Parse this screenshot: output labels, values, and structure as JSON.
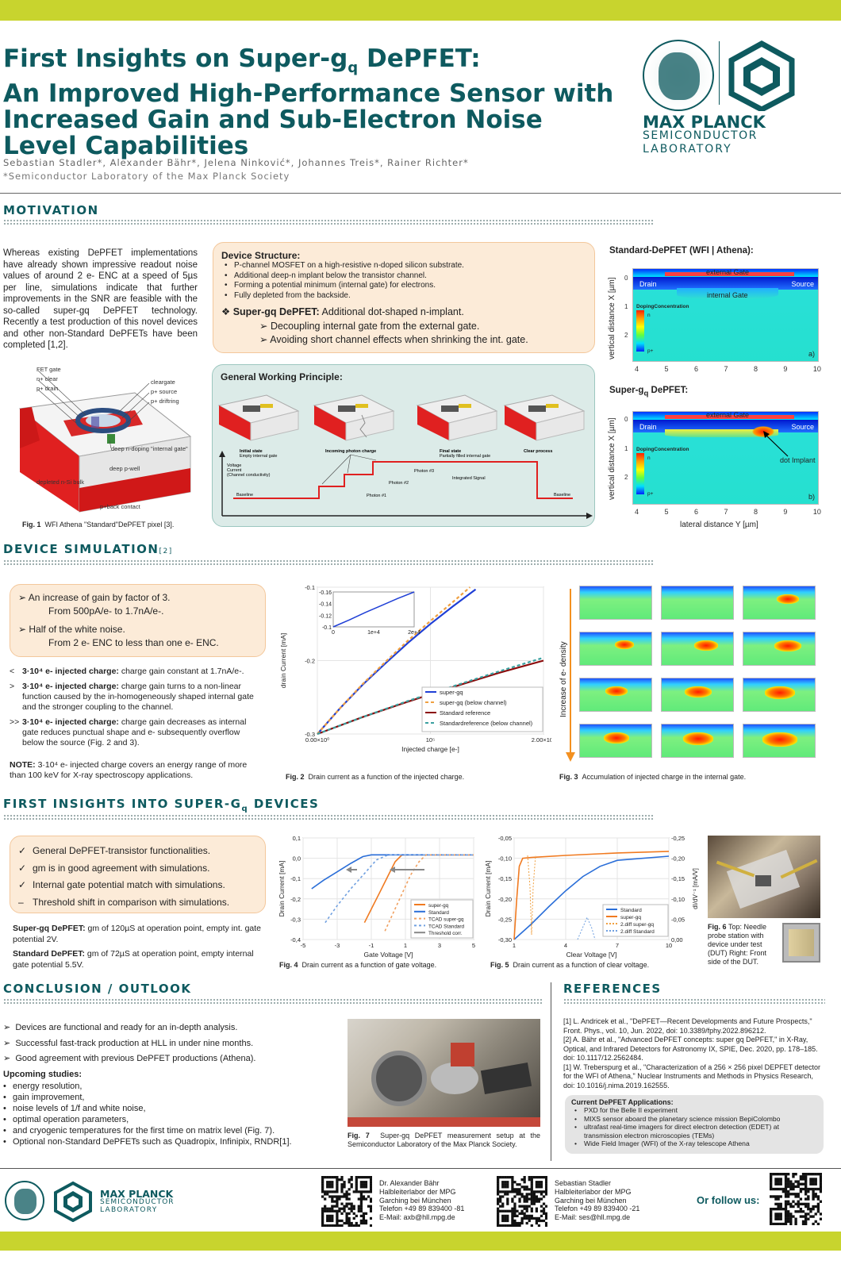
{
  "header": {
    "title_lines": [
      "First Insights on Super-g",
      "An Improved High-Performance Sensor with",
      "Increased Gain and Sub-Electron Noise",
      "Level Capabilities"
    ],
    "title_sub": "q",
    "title_tail": " DePFET:",
    "authors": "Sebastian Stadler*, Alexander Bähr*, Jelena Ninković*, Johannes Treis*, Rainer Richter*",
    "affiliation": "*Semiconductor Laboratory of the Max Planck Society",
    "logo_line1": "MAX PLANCK",
    "logo_line2": "SEMICONDUCTOR",
    "logo_line3": "LABORATORY"
  },
  "motivation": {
    "heading": "MOTIVATION",
    "intro": "Whereas existing DePFET implementations have already shown impressive readout noise values of around 2 e- ENC at a speed of 5µs per line, simulations indicate that further improvements in the SNR are feasible with the so-called super-gq DePFET technology. Recently a test production of this novel devices and other non-Standard DePFETs have been completed [1,2].",
    "device_structure_title": "Device Structure:",
    "device_structure": [
      "P-channel MOSFET on a high-resistive n-doped silicon substrate.",
      "Additional deep-n implant below the transistor channel.",
      "Forming a potential minimum (internal gate) for electrons.",
      "Fully depleted from the backside."
    ],
    "superg_label": "Super-gq DePFET:",
    "superg_text": " Additional dot-shaped n-implant.",
    "superg_points": [
      "Decoupling internal gate from the external gate.",
      "Avoiding short channel effects when shrinking the int. gate."
    ],
    "fig1_labels": [
      "FET gate",
      "n+ clear",
      "p+ drain",
      "cleargate",
      "p+ source",
      "p+ driftring",
      "deep n-doping \"internal gate\"",
      "deep p-well",
      "depleted n-Si bulk",
      "p+back contact"
    ],
    "fig1_caption_num": "Fig. 1",
    "fig1_caption": "WFI Athena \"Standard\"DePFET pixel [3].",
    "working_title": "General Working Principle:",
    "working_labels": [
      "Initial state",
      "Empty internal gate",
      "Incoming photon charge",
      "Final state",
      "Partially filled internal gate",
      "Clear process",
      "Voltage",
      "Current",
      "(Channel conductivity)",
      "Baseline",
      "Photon #1",
      "Photon #2",
      "Photon #3",
      "Integrated Signal",
      "Baseline"
    ],
    "std_title": "Standard-DePFET (WFI | Athena):",
    "sg_title": "Super-gq DePFET:",
    "sim_labels": {
      "external_gate": "external Gate",
      "drain": "Drain",
      "source": "Source",
      "internal_gate": "internal Gate",
      "doping": "DopingConcentration",
      "n": "n",
      "p": "p+",
      "a": "a)",
      "b": "b)",
      "dot": "dot Implant",
      "ylabel": "vertical distance X [µm]",
      "xlabel": "lateral distance Y [µm]"
    },
    "sim_xticks": [
      "4",
      "5",
      "6",
      "7",
      "8",
      "9",
      "10"
    ],
    "sim_yticks": [
      "0",
      "1",
      "2"
    ]
  },
  "device_sim": {
    "heading": "DEVICE SIMULATION",
    "ref": "[2]",
    "box": [
      "An increase of gain by factor of 3.",
      "From 500pA/e- to 1.7nA/e-.",
      "Half of the white noise.",
      "From 2 e- ENC to less than one e- ENC."
    ],
    "points": [
      {
        "sym": "<",
        "bold": "3·10⁴ e- injected charge:",
        "text": " charge gain constant at 1.7nA/e-."
      },
      {
        "sym": ">",
        "bold": "3·10⁴ e- injected charge:",
        "text": " charge gain turns to a non-linear function caused by the in-homogeneously shaped internal gate and the stronger coupling to the channel."
      },
      {
        "sym": ">>",
        "bold": "3·10⁴ e- injected charge:",
        "text": " charge gain decreases as internal gate reduces punctual shape and e- subsequently overflow below the source (Fig. 2 and 3)."
      }
    ],
    "note_bold": "NOTE:",
    "note": " 3·10⁴ e- injected charge covers an energy range of more than 100 keV for X-ray spectroscopy applications.",
    "fig2_num": "Fig. 2",
    "fig2_caption": "Drain current as a function of the injected charge.",
    "fig3_num": "Fig. 3",
    "fig3_caption": "Accumulation of injected charge in the internal gate.",
    "fig3_ylabel": "Increase of e- density"
  },
  "insights": {
    "heading": "FIRST INSIGHTS INTO SUPER-G",
    "heading_sub": "q",
    "heading_tail": " DEVICES",
    "box": [
      {
        "sym": "✓",
        "text": "General DePFET-transistor functionalities."
      },
      {
        "sym": "✓",
        "text": "gm is in good agreement with simulations."
      },
      {
        "sym": "✓",
        "text": "Internal gate potential match with simulations."
      },
      {
        "sym": "–",
        "text": "Threshold shift in comparison with simulations."
      }
    ],
    "sg_bold": "Super-gq DePFET:",
    "sg_text": " gm of 120µS at operation point, empty int. gate potential 2V.",
    "std_bold": "Standard DePFET:",
    "std_text": " gm of 72µS at operation point, empty internal gate potential 5.5V.",
    "fig4_num": "Fig. 4",
    "fig4_caption": "Drain current as a function of gate voltage.",
    "fig5_num": "Fig. 5",
    "fig5_caption": "Drain current as a function of clear voltage.",
    "fig6_num": "Fig. 6",
    "fig6_caption": "Top: Needle probe station with device under test (DUT) Right: Front side of the DUT."
  },
  "conclusion": {
    "heading": "CONCLUSION / OUTLOOK",
    "points": [
      "Devices are functional and ready for an in-depth analysis.",
      "Successful fast-track production at HLL in under nine months.",
      "Good agreement with previous DePFET productions (Athena)."
    ],
    "upcoming_title": "Upcoming studies:",
    "upcoming": [
      "energy resolution,",
      "gain improvement,",
      "noise levels of 1/f and white noise,",
      "optimal operation parameters,",
      "and cryogenic temperatures for the first time on matrix level (Fig. 7).",
      "Optional non-Standard DePFETs such as Quadropix, Infinipix, RNDR[1]."
    ],
    "fig7_num": "Fig. 7",
    "fig7_caption": "Super-gq DePFET measurement setup at the Semiconductor Laboratory of the Max Planck Society."
  },
  "references": {
    "heading": "REFERENCES",
    "items": [
      "[1] L. Andricek et al., \"DePFET—Recent Developments and Future Prospects,\" Front. Phys., vol. 10, Jun. 2022, doi: 10.3389/fphy.2022.896212.",
      "[2] A. Bähr et al., \"Advanced DePFET concepts: super gq DePFET,\" in X-Ray, Optical, and Infrared Detectors for Astronomy IX, SPIE, Dec. 2020, pp. 178–185. doi: 10.1117/12.2562484.",
      "[1] W. Treberspurg et al., \"Characterization of a 256 × 256 pixel DEPFET detector for the WFI of Athena,\" Nuclear Instruments and Methods in Physics Research, doi: 10.1016/j.nima.2019.162555."
    ],
    "apps_title": "Current DePFET Applications:",
    "apps": [
      "PXD for the Belle II experiment",
      "MIXS sensor aboard the planetary science mission BepiColombo",
      "ultrafast real-time imagers for direct electron detection (EDET) at transmission electron microscopies (TEMs)",
      "Wide Field Imager (WFI) of the X-ray telescope Athena"
    ]
  },
  "footer": {
    "logo_line1": "MAX PLANCK",
    "logo_line2": "SEMICONDUCTOR",
    "logo_line3": "LABORATORY",
    "contact1": [
      "Dr. Alexander Bähr",
      "Halbleiterlabor der MPG",
      "Garching bei München",
      "Telefon +49 89 839400 -81",
      "E-Mail: axb@hll.mpg.de"
    ],
    "contact2": [
      "Sebastian Stadler",
      "Halbleiterlabor der MPG",
      "Garching bei München",
      "Telefon +49 89 839400 -21",
      "E-Mail: ses@hll.mpg.de"
    ],
    "follow": "Or follow us:"
  },
  "chart_data": [
    {
      "type": "line",
      "title": "",
      "xlabel": "Injected charge [e-]",
      "ylabel": "drain Current [mA]",
      "xlim": [
        0,
        200000
      ],
      "ylim": [
        -0.1,
        -0.3
      ],
      "xticks": [
        "0.00×10⁰",
        "10⁵",
        "2.00×10⁵"
      ],
      "yticks": [
        "-0.3",
        "-0.2",
        "-0.1"
      ],
      "series": [
        {
          "name": "super-gq",
          "color": "#1f3fd6",
          "dash": "",
          "x": [
            0,
            20000,
            40000,
            60000,
            80000,
            100000,
            120000,
            140000
          ],
          "y": [
            -0.1,
            -0.135,
            -0.167,
            -0.196,
            -0.224,
            -0.25,
            -0.274,
            -0.297
          ]
        },
        {
          "name": "super-gq (below channel)",
          "color": "#f0a040",
          "dash": "4,3",
          "x": [
            0,
            20000,
            40000,
            60000,
            80000,
            100000,
            120000,
            135000
          ],
          "y": [
            -0.1,
            -0.135,
            -0.168,
            -0.198,
            -0.227,
            -0.254,
            -0.28,
            -0.3
          ]
        },
        {
          "name": "Standard reference",
          "color": "#8b0a0a",
          "dash": "",
          "x": [
            0,
            40000,
            80000,
            120000,
            160000,
            200000
          ],
          "y": [
            -0.1,
            -0.123,
            -0.144,
            -0.164,
            -0.183,
            -0.2
          ]
        },
        {
          "name": "Standardreference (below channel)",
          "color": "#3aa0a0",
          "dash": "4,3",
          "x": [
            0,
            40000,
            80000,
            120000,
            160000,
            200000
          ],
          "y": [
            -0.1,
            -0.123,
            -0.145,
            -0.165,
            -0.185,
            -0.204
          ]
        }
      ],
      "inset": {
        "xticks": [
          "0",
          "1e+4",
          "2e+4"
        ],
        "yticks": [
          "-0.16",
          "-0.14",
          "-0.12",
          "-0.1"
        ],
        "x": [
          0,
          5000,
          10000,
          15000,
          20000,
          25000
        ],
        "y": [
          -0.1,
          -0.112,
          -0.125,
          -0.137,
          -0.149,
          -0.16
        ]
      }
    },
    {
      "type": "line",
      "title": "",
      "xlabel": "Gate Voltage [V]",
      "ylabel": "Drain Current [mA]",
      "xlim": [
        -5,
        5
      ],
      "ylim": [
        -0.5,
        0.1
      ],
      "xticks": [
        "-5",
        "-3",
        "-1",
        "1",
        "3",
        "5"
      ],
      "yticks": [
        "0,1",
        "0,0",
        "-0,1",
        "-0,2",
        "-0,3",
        "-0,4"
      ],
      "series": [
        {
          "name": "super-gq",
          "color": "#f07a20",
          "dash": "",
          "x": [
            -1.4,
            -1.0,
            -0.5,
            0.0,
            0.4,
            0.8,
            5.0
          ],
          "y": [
            -0.4,
            -0.32,
            -0.22,
            -0.12,
            -0.04,
            0.0,
            0.0
          ]
        },
        {
          "name": "Standard",
          "color": "#2a6ed8",
          "dash": "",
          "x": [
            -4.5,
            -3.8,
            -3.0,
            -2.2,
            -1.5,
            -1.0,
            5.0
          ],
          "y": [
            -0.2,
            -0.15,
            -0.1,
            -0.05,
            -0.01,
            0.0,
            0.0
          ]
        },
        {
          "name": "TCAD super-gq",
          "color": "#f0a060",
          "dash": "3,3",
          "x": [
            -0.2,
            0.3,
            0.8,
            1.3,
            1.8,
            2.2,
            5.0
          ],
          "y": [
            -0.45,
            -0.34,
            -0.23,
            -0.12,
            -0.04,
            0.0,
            0.0
          ]
        },
        {
          "name": "TCAD Standard",
          "color": "#70a0e0",
          "dash": "3,3",
          "x": [
            -3.7,
            -3.0,
            -2.2,
            -1.4,
            -0.7,
            0.0,
            5.0
          ],
          "y": [
            -0.4,
            -0.3,
            -0.2,
            -0.11,
            -0.03,
            0.0,
            0.0
          ]
        },
        {
          "name": "Threshold corr.",
          "color": "#888888",
          "dash": "",
          "x": [],
          "y": []
        }
      ]
    },
    {
      "type": "line",
      "title": "",
      "xlabel": "Clear Voltage [V]",
      "ylabel": "Drain Current [mA]",
      "ylabel2": "dI/dV⁻¹ [mA/V]",
      "xlim": [
        1,
        10
      ],
      "ylim": [
        -0.3,
        -0.05
      ],
      "xticks": [
        "1",
        "4",
        "7",
        "10"
      ],
      "yticks": [
        "-0,05",
        "-0,10",
        "-0,15",
        "-0,20",
        "-0,25",
        "-0,30"
      ],
      "yticks2": [
        "-0,25",
        "-0,20",
        "-0,15",
        "-0,10",
        "-0,05",
        "0,00"
      ],
      "series": [
        {
          "name": "Standard",
          "color": "#2a6ed8",
          "dash": "",
          "x": [
            1.0,
            2.0,
            3.0,
            4.0,
            5.0,
            6.0,
            7.0,
            10.0
          ],
          "y": [
            -0.3,
            -0.262,
            -0.22,
            -0.18,
            -0.145,
            -0.12,
            -0.105,
            -0.095
          ]
        },
        {
          "name": "super-gq",
          "color": "#f07a20",
          "dash": "",
          "x": [
            1.0,
            1.15,
            1.3,
            1.5,
            2.0,
            4.0,
            7.0,
            10.0
          ],
          "y": [
            -0.3,
            -0.2,
            -0.12,
            -0.1,
            -0.098,
            -0.093,
            -0.087,
            -0.083
          ]
        },
        {
          "name": "2.diff super-gq",
          "color": "#f0a040",
          "dash": "2,2",
          "x": [],
          "y": []
        },
        {
          "name": "2.diff Standard",
          "color": "#70a0e0",
          "dash": "2,2",
          "x": [],
          "y": []
        }
      ]
    }
  ]
}
